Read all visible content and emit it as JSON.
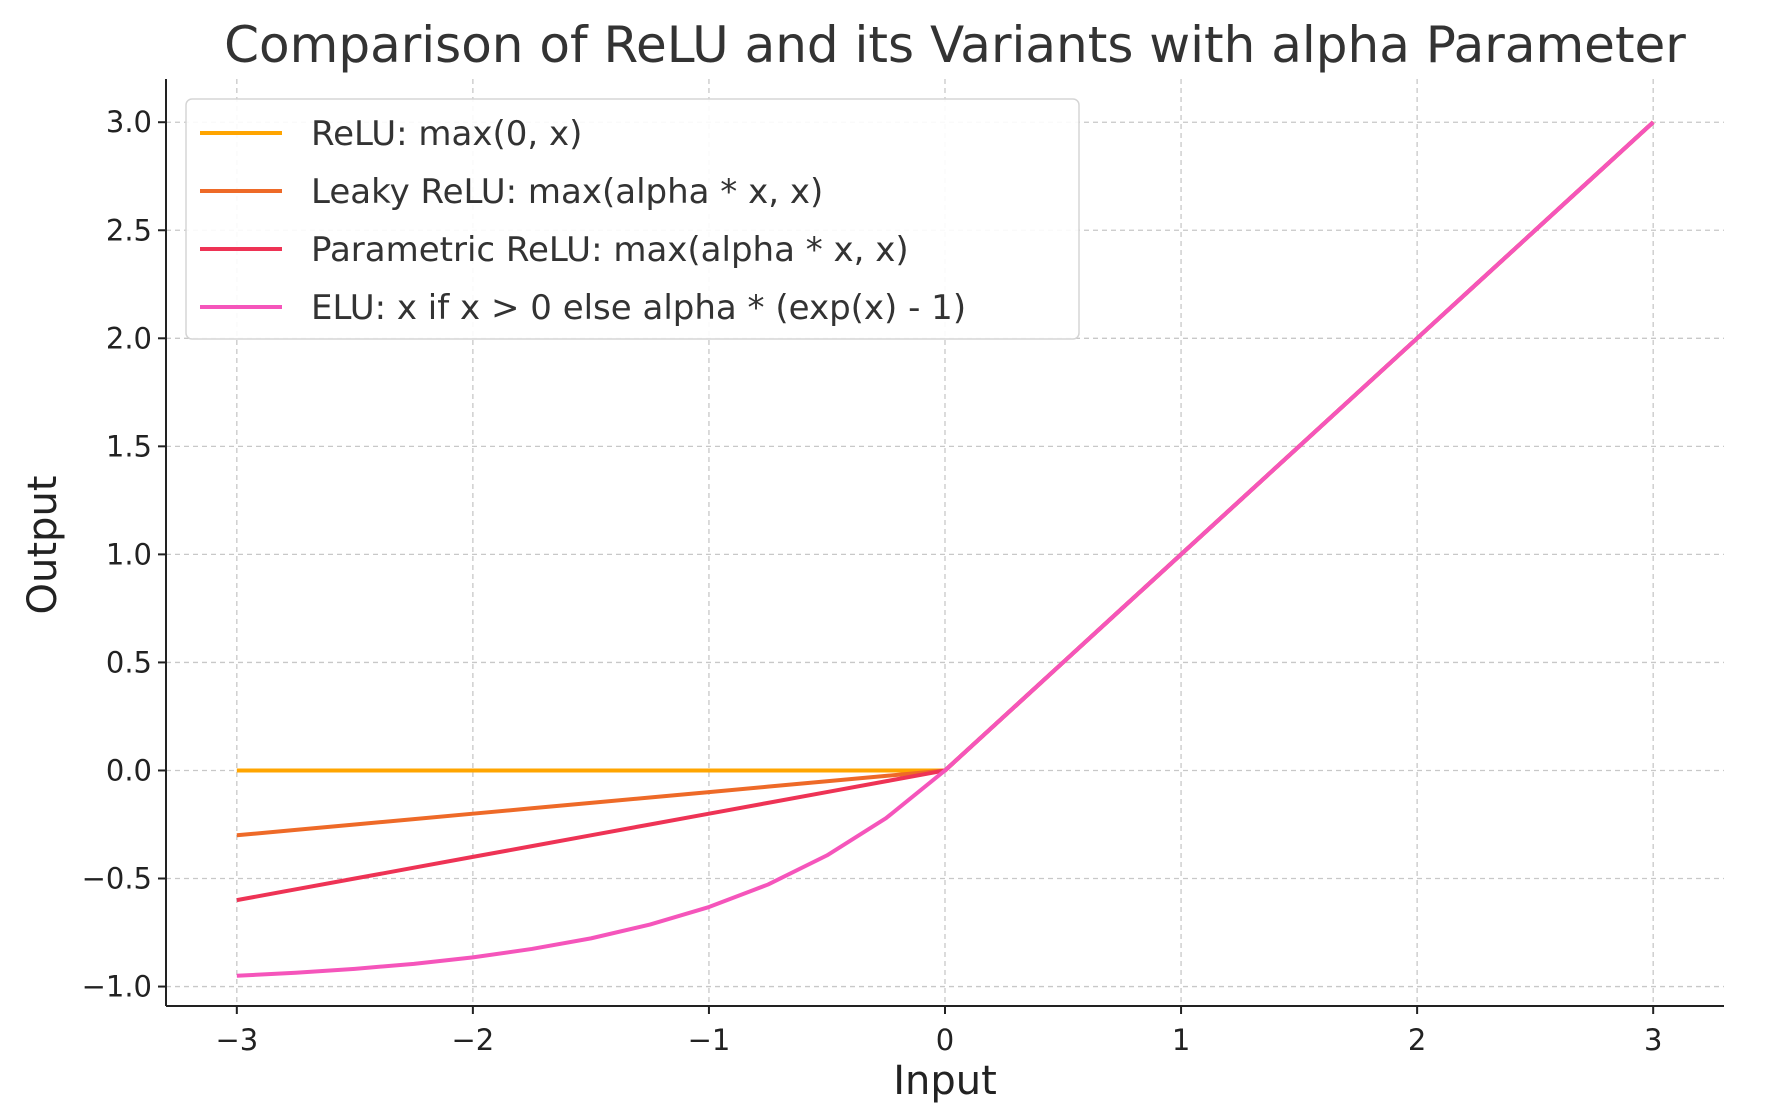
{
  "chart_data": {
    "type": "line",
    "title": "Comparison of ReLU and its Variants with alpha Parameter",
    "xlabel": "Input",
    "ylabel": "Output",
    "xlim": [
      -3.3,
      3.3
    ],
    "ylim": [
      -1.09,
      3.2
    ],
    "x_ticks": [
      -3,
      -2,
      -1,
      0,
      1,
      2,
      3
    ],
    "y_ticks": [
      -1.0,
      -0.5,
      0.0,
      0.5,
      1.0,
      1.5,
      2.0,
      2.5,
      3.0
    ],
    "x_tick_labels": [
      "−3",
      "−2",
      "−1",
      "0",
      "1",
      "2",
      "3"
    ],
    "y_tick_labels": [
      "−1.0",
      "−0.5",
      "0.0",
      "0.5",
      "1.0",
      "1.5",
      "2.0",
      "2.5",
      "3.0"
    ],
    "grid": true,
    "legend_position": "top-left",
    "x": [
      -3.0,
      -2.75,
      -2.5,
      -2.25,
      -2.0,
      -1.75,
      -1.5,
      -1.25,
      -1.0,
      -0.75,
      -0.5,
      -0.25,
      0.0,
      0.25,
      0.5,
      0.75,
      1.0,
      1.25,
      1.5,
      1.75,
      2.0,
      2.25,
      2.5,
      2.75,
      3.0
    ],
    "series": [
      {
        "name": "ReLU: max(0, x)",
        "color": "#ffa500",
        "values": [
          0.0,
          0.0,
          0.0,
          0.0,
          0.0,
          0.0,
          0.0,
          0.0,
          0.0,
          0.0,
          0.0,
          0.0,
          0.0,
          0.25,
          0.5,
          0.75,
          1.0,
          1.25,
          1.5,
          1.75,
          2.0,
          2.25,
          2.5,
          2.75,
          3.0
        ]
      },
      {
        "name": "Leaky ReLU: max(alpha * x, x)",
        "color": "#ee6a28",
        "values": [
          -0.3,
          -0.275,
          -0.25,
          -0.225,
          -0.2,
          -0.175,
          -0.15,
          -0.125,
          -0.1,
          -0.075,
          -0.05,
          -0.025,
          0.0,
          0.25,
          0.5,
          0.75,
          1.0,
          1.25,
          1.5,
          1.75,
          2.0,
          2.25,
          2.5,
          2.75,
          3.0
        ]
      },
      {
        "name": "Parametric ReLU: max(alpha * x, x)",
        "color": "#ee3355",
        "values": [
          -0.6,
          -0.55,
          -0.5,
          -0.45,
          -0.4,
          -0.35,
          -0.3,
          -0.25,
          -0.2,
          -0.15,
          -0.1,
          -0.05,
          0.0,
          0.25,
          0.5,
          0.75,
          1.0,
          1.25,
          1.5,
          1.75,
          2.0,
          2.25,
          2.5,
          2.75,
          3.0
        ]
      },
      {
        "name": "ELU: x if x > 0 else alpha * (exp(x) - 1)",
        "color": "#f555bb",
        "values": [
          -0.95,
          -0.936,
          -0.918,
          -0.895,
          -0.865,
          -0.826,
          -0.777,
          -0.713,
          -0.632,
          -0.528,
          -0.393,
          -0.221,
          0.0,
          0.25,
          0.5,
          0.75,
          1.0,
          1.25,
          1.5,
          1.75,
          2.0,
          2.25,
          2.5,
          2.75,
          3.0
        ]
      }
    ]
  }
}
